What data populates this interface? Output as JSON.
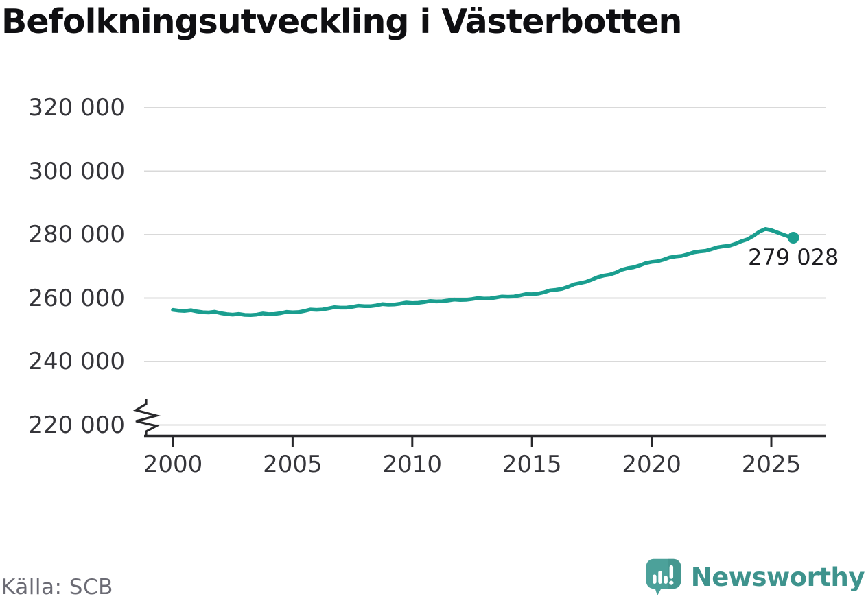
{
  "title": "Befolkningsutveckling i Västerbotten",
  "source_label": "Källa: SCB",
  "brand": {
    "name": "Newsworthy",
    "icon": "speech-bubble-bar-chart-icon",
    "icon_color": "#4ca19a",
    "icon_shade_color": "#3f8f89",
    "text_color": "#3e938d"
  },
  "colors": {
    "line": "#1a9e8f",
    "grid": "#d9d9d9",
    "axis": "#28282b",
    "tick_text": "#35353a",
    "title_text": "#0f0f12",
    "muted_text": "#6b6b74"
  },
  "chart_data": {
    "type": "line",
    "title": "Befolkningsutveckling i Västerbotten",
    "source": "SCB",
    "xlabel": "",
    "ylabel": "",
    "grid": "horizontal",
    "legend": "none",
    "axis_break_bottom_left": true,
    "x_ticks": [
      2000,
      2005,
      2010,
      2015,
      2020,
      2025
    ],
    "y_ticks": [
      220000,
      240000,
      260000,
      280000,
      300000,
      320000
    ],
    "y_tick_labels": [
      "220 000",
      "240 000",
      "260 000",
      "280 000",
      "300 000",
      "320 000"
    ],
    "ylim": [
      220000,
      320000
    ],
    "xlim_shown": [
      2000,
      2026
    ],
    "x_start": 2000,
    "x_step": 0.25,
    "series": [
      {
        "name": "Västerbotten",
        "values": [
          256300,
          256050,
          255950,
          256200,
          255800,
          255550,
          255450,
          255700,
          255250,
          254950,
          254800,
          255000,
          254700,
          254650,
          254800,
          255150,
          254950,
          255000,
          255250,
          255650,
          255500,
          255600,
          255950,
          256400,
          256300,
          256400,
          256750,
          257150,
          257000,
          257000,
          257250,
          257600,
          257450,
          257450,
          257700,
          258100,
          257950,
          258000,
          258250,
          258600,
          258450,
          258500,
          258750,
          259100,
          258950,
          259000,
          259250,
          259550,
          259400,
          259450,
          259700,
          260000,
          259850,
          259900,
          260200,
          260500,
          260400,
          260500,
          260850,
          261250,
          261200,
          261400,
          261800,
          262400,
          262600,
          262900,
          263500,
          264300,
          264700,
          265100,
          265800,
          266600,
          267100,
          267400,
          268000,
          268900,
          269400,
          269700,
          270300,
          271000,
          271400,
          271600,
          272100,
          272800,
          273100,
          273300,
          273800,
          274400,
          274700,
          274900,
          275400,
          276000,
          276300,
          276500,
          277100,
          277900,
          278500,
          279600,
          280900,
          281800,
          281400,
          280700,
          280000,
          279300
        ]
      }
    ],
    "last_point": {
      "x": 2025.92,
      "value": 279028,
      "label": "279 028"
    }
  }
}
